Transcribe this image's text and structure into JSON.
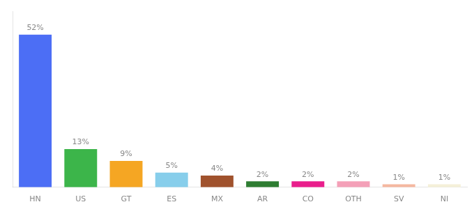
{
  "chart_data": {
    "type": "bar",
    "categories": [
      "HN",
      "US",
      "GT",
      "ES",
      "MX",
      "AR",
      "CO",
      "OTH",
      "SV",
      "NI"
    ],
    "values": [
      52,
      13,
      9,
      5,
      4,
      2,
      2,
      2,
      1,
      1
    ],
    "value_labels": [
      "52%",
      "13%",
      "9%",
      "5%",
      "4%",
      "2%",
      "2%",
      "2%",
      "1%",
      "1%"
    ],
    "colors": [
      "#4c6ef5",
      "#3cb54a",
      "#f5a623",
      "#87ceeb",
      "#a0522d",
      "#2e7d32",
      "#e91e8c",
      "#f4a0b8",
      "#f5b8a0",
      "#f5f0d8"
    ],
    "ylim": [
      0,
      60
    ],
    "grid": false,
    "data_labels": true,
    "tick_labels": "x"
  }
}
